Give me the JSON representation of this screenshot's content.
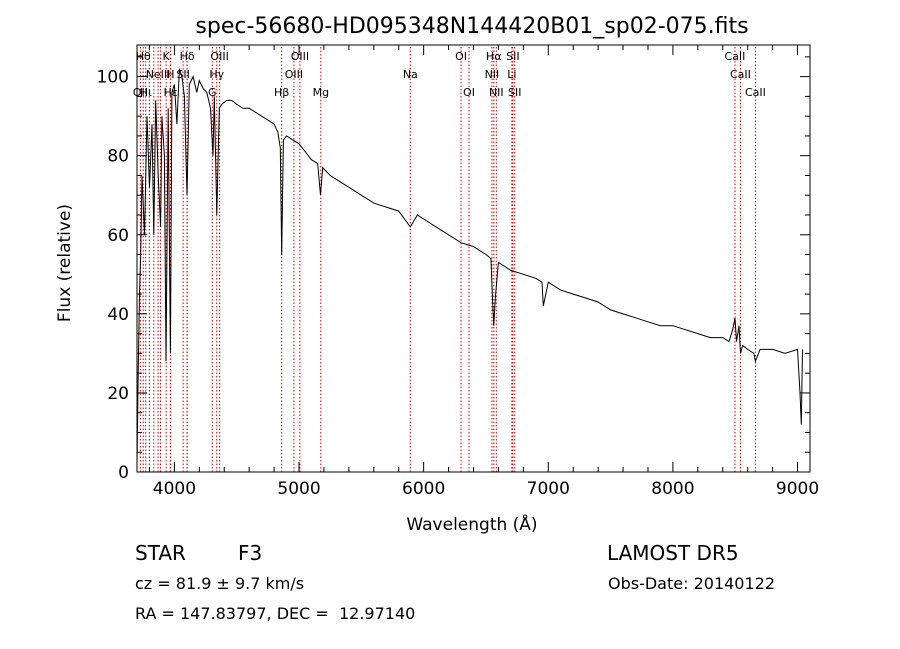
{
  "chart_data": {
    "type": "line",
    "title": "spec-56680-HD095348N144420B01_sp02-075.fits",
    "xlabel": "Wavelength (Å)",
    "ylabel": "Flux (relative)",
    "xlim": [
      3700,
      9100
    ],
    "ylim": [
      0,
      108
    ],
    "xticks": [
      4000,
      5000,
      6000,
      7000,
      8000,
      9000
    ],
    "yticks": [
      0,
      20,
      40,
      60,
      80,
      100
    ],
    "grid": false,
    "line_color": "#000000",
    "marker_color": "#cc0000",
    "series": [
      {
        "x": [
          3700,
          3710,
          3720,
          3730,
          3740,
          3760,
          3780,
          3800,
          3820,
          3835,
          3850,
          3870,
          3889,
          3900,
          3920,
          3933,
          3950,
          3968,
          3980,
          4000,
          4020,
          4040,
          4060,
          4080,
          4101,
          4120,
          4150,
          4180,
          4200,
          4230,
          4260,
          4290,
          4310,
          4320,
          4340,
          4360,
          4380,
          4420,
          4460,
          4500,
          4550,
          4600,
          4650,
          4700,
          4750,
          4800,
          4830,
          4850,
          4861,
          4875,
          4900,
          4950,
          5000,
          5050,
          5100,
          5150,
          5172,
          5190,
          5250,
          5300,
          5400,
          5500,
          5600,
          5700,
          5800,
          5893,
          5950,
          6000,
          6100,
          6200,
          6300,
          6400,
          6500,
          6540,
          6555,
          6563,
          6575,
          6600,
          6700,
          6800,
          6900,
          6950,
          6960,
          7000,
          7100,
          7200,
          7300,
          7400,
          7500,
          7600,
          7700,
          7800,
          7900,
          8000,
          8100,
          8200,
          8300,
          8400,
          8450,
          8480,
          8498,
          8510,
          8530,
          8542,
          8560,
          8600,
          8650,
          8662,
          8700,
          8800,
          8900,
          9000,
          9020,
          9030,
          9040
        ],
        "y": [
          2,
          25,
          45,
          55,
          75,
          60,
          90,
          72,
          88,
          60,
          94,
          75,
          62,
          90,
          80,
          28,
          92,
          30,
          96,
          98,
          88,
          102,
          100,
          95,
          70,
          98,
          100,
          96,
          99,
          97,
          96,
          92,
          80,
          95,
          65,
          92,
          93,
          94,
          94,
          93,
          92,
          92,
          91,
          90,
          89,
          88,
          86,
          82,
          55,
          84,
          85,
          84,
          83,
          81,
          79,
          78,
          70,
          77,
          75,
          74,
          72,
          70,
          68,
          67,
          66,
          62,
          65,
          64,
          62,
          60,
          58,
          57,
          55,
          54,
          42,
          37,
          44,
          53,
          51,
          50,
          49,
          48,
          42,
          48,
          46,
          45,
          44,
          43,
          41,
          40,
          39,
          38,
          37,
          37,
          36,
          35,
          34,
          34,
          33,
          36,
          39,
          33,
          37,
          30,
          32,
          31,
          30,
          28,
          31,
          31,
          30,
          31,
          20,
          12,
          31
        ]
      }
    ],
    "lines": [
      {
        "x": 3727,
        "label": "OII",
        "row": 2
      },
      {
        "x": 3750,
        "label": "Hθ",
        "row": 0
      },
      {
        "x": 3770,
        "label": "Hι",
        "row": 2
      },
      {
        "x": 3799,
        "label": "",
        "row": -1
      },
      {
        "x": 3835,
        "label": "",
        "row": -1
      },
      {
        "x": 3869,
        "label": "NeIII",
        "row": 1
      },
      {
        "x": 3889,
        "label": "",
        "row": -1
      },
      {
        "x": 3934,
        "label": "K",
        "row": 0
      },
      {
        "x": 3968,
        "label": "H",
        "row": 1
      },
      {
        "x": 3970,
        "label": "Hε",
        "row": 2
      },
      {
        "x": 4070,
        "label": "SII",
        "row": 1
      },
      {
        "x": 4102,
        "label": "Hδ",
        "row": 0
      },
      {
        "x": 4102,
        "label": "",
        "row": -1
      },
      {
        "x": 4304,
        "label": "G",
        "row": 2
      },
      {
        "x": 4340,
        "label": "Hγ",
        "row": 1
      },
      {
        "x": 4363,
        "label": "OIII",
        "row": 0
      },
      {
        "x": 4861,
        "label": "Hβ",
        "row": 2
      },
      {
        "x": 4959,
        "label": "OIII",
        "row": 1
      },
      {
        "x": 5007,
        "label": "OIII",
        "row": 0
      },
      {
        "x": 5175,
        "label": "Mg",
        "row": 2
      },
      {
        "x": 5893,
        "label": "Na",
        "row": 1
      },
      {
        "x": 6300,
        "label": "OI",
        "row": 0
      },
      {
        "x": 6364,
        "label": "OI",
        "row": 2
      },
      {
        "x": 6548,
        "label": "NII",
        "row": 1
      },
      {
        "x": 6563,
        "label": "Hα",
        "row": 0
      },
      {
        "x": 6583,
        "label": "NII",
        "row": 2
      },
      {
        "x": 6708,
        "label": "Li",
        "row": 1
      },
      {
        "x": 6716,
        "label": "SII",
        "row": 0
      },
      {
        "x": 6731,
        "label": "SII",
        "row": 2
      },
      {
        "x": 8498,
        "label": "CaII",
        "row": 0
      },
      {
        "x": 8542,
        "label": "CaII",
        "row": 1
      },
      {
        "x": 8662,
        "label": "CaII",
        "row": 2
      }
    ]
  },
  "info": {
    "class_label": "STAR",
    "subclass": "F3",
    "survey": "LAMOST DR5",
    "redshift": "cz = 81.9 ± 9.7 km/s",
    "obs_date": "Obs-Date: 20140122",
    "coords": "RA = 147.83797, DEC =  12.97140"
  }
}
